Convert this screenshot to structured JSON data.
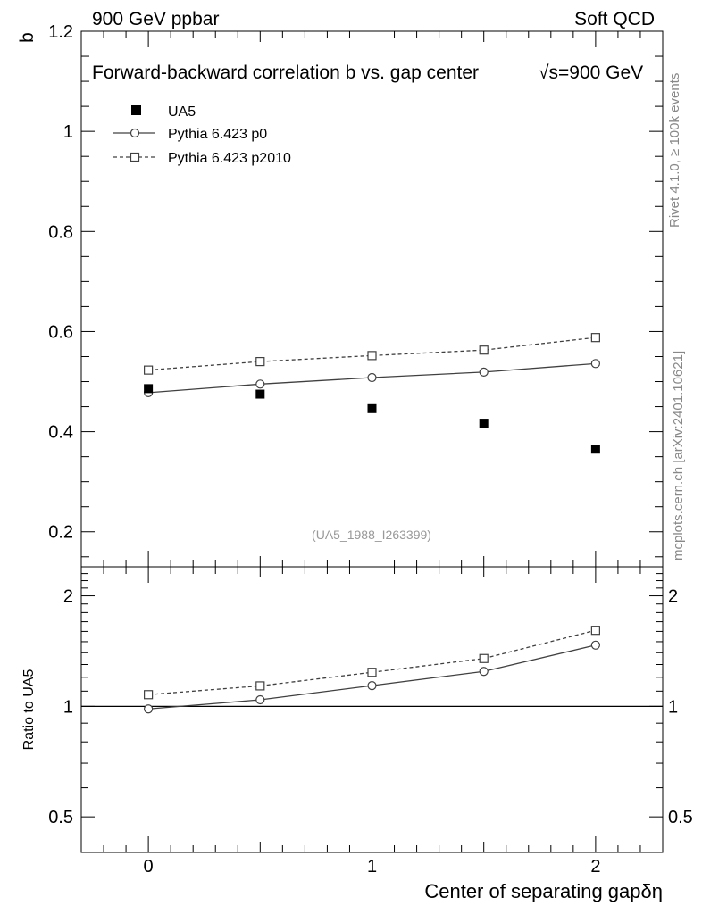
{
  "header": {
    "left": "900 GeV ppbar",
    "right": "Soft QCD"
  },
  "side_labels": {
    "rivet": "Rivet 4.1.0, ≥ 100k events",
    "mcplots": "mcplots.cern.ch [arXiv:2401.10621]"
  },
  "chart_data": {
    "type": "scatter",
    "title": "Forward-backward correlation b  vs. gap center",
    "title_energy_prefix": "√s",
    "title_energy": "=900 GeV",
    "analysis_id": "(UA5_1988_I263399)",
    "x": [
      0,
      0.5,
      1,
      1.5,
      2
    ],
    "xlabel": "Center of separating gap",
    "xlabel_symbol": "δη",
    "xlim": [
      -0.3,
      2.3
    ],
    "x_ticks": [
      "0",
      "1",
      "2"
    ],
    "ylabel": "b",
    "ylim": [
      0.13,
      1.2
    ],
    "y_ticks": [
      "0.2",
      "0.4",
      "0.6",
      "0.8",
      "1",
      "1.2"
    ],
    "series": [
      {
        "name": "UA5",
        "marker": "filled-square",
        "color": "#000000",
        "values": [
          0.486,
          0.475,
          0.446,
          0.417,
          0.365
        ]
      },
      {
        "name": "Pythia 6.423 p0",
        "marker": "open-circle",
        "line": "solid",
        "color": "#404040",
        "values": [
          0.478,
          0.495,
          0.508,
          0.519,
          0.536
        ]
      },
      {
        "name": "Pythia 6.423 p2010",
        "marker": "open-square",
        "line": "dashed",
        "color": "#404040",
        "values": [
          0.523,
          0.54,
          0.552,
          0.563,
          0.588
        ]
      }
    ],
    "ratio": {
      "ylabel": "Ratio to UA5",
      "ylim": [
        0.4,
        2.4
      ],
      "y_ticks": [
        "0.5",
        "1",
        "2"
      ],
      "reference": 1,
      "series": [
        {
          "name": "Pythia 6.423 p0",
          "values": [
            0.984,
            1.042,
            1.139,
            1.245,
            1.468
          ]
        },
        {
          "name": "Pythia 6.423 p2010",
          "values": [
            1.076,
            1.137,
            1.238,
            1.35,
            1.611
          ]
        }
      ]
    }
  }
}
